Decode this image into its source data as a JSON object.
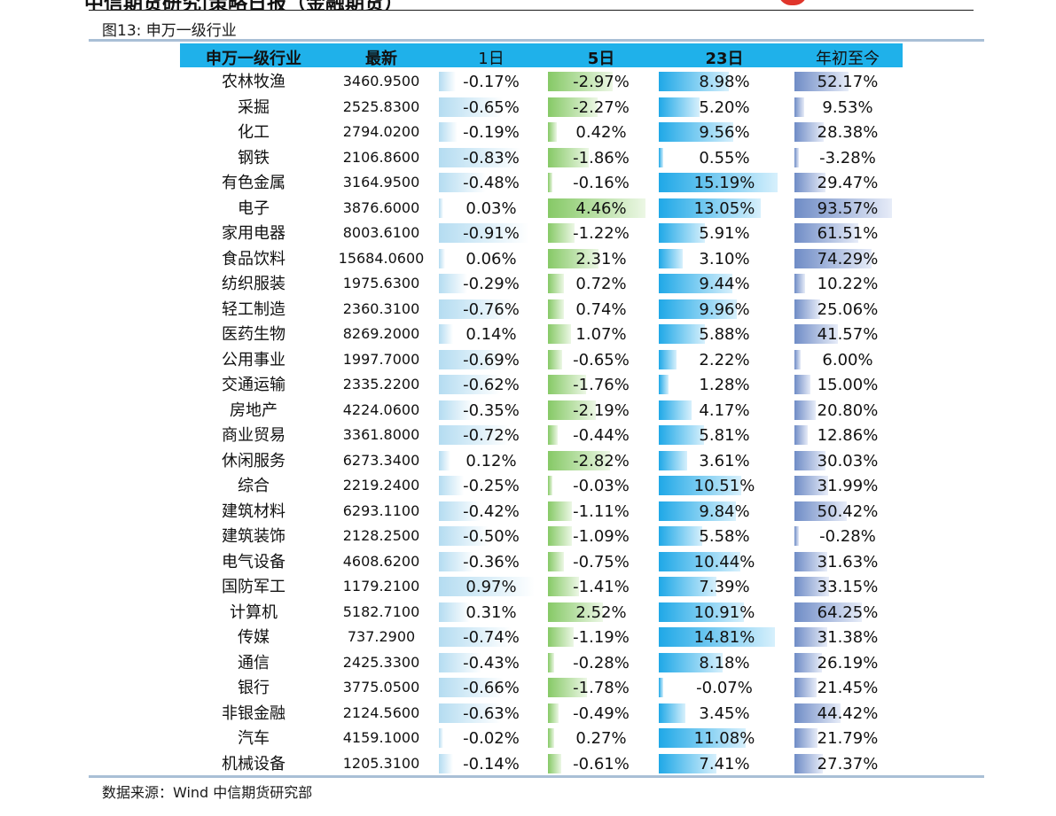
{
  "page_header": {
    "title_cut": "中信期货研究|策略日报（金融期货）"
  },
  "figure": {
    "caption": "图13: 申万一级行业"
  },
  "table": {
    "columns": [
      "申万一级行业",
      "最新",
      "1日",
      "5日",
      "23日",
      "年初至今"
    ],
    "max_abs": {
      "d1": 0.97,
      "d5": 4.46,
      "d23": 15.19,
      "ytd": 93.57
    },
    "rows": [
      {
        "industry": "农林牧渔",
        "latest": "3460.9500",
        "d1": "-0.17%",
        "d5": "-2.97%",
        "d23": "8.98%",
        "ytd": "52.17%"
      },
      {
        "industry": "采掘",
        "latest": "2525.8300",
        "d1": "-0.65%",
        "d5": "-2.27%",
        "d23": "5.20%",
        "ytd": "9.53%"
      },
      {
        "industry": "化工",
        "latest": "2794.0200",
        "d1": "-0.19%",
        "d5": "0.42%",
        "d23": "9.56%",
        "ytd": "28.38%"
      },
      {
        "industry": "钢铁",
        "latest": "2106.8600",
        "d1": "-0.83%",
        "d5": "-1.86%",
        "d23": "0.55%",
        "ytd": "-3.28%"
      },
      {
        "industry": "有色金属",
        "latest": "3164.9500",
        "d1": "-0.48%",
        "d5": "-0.16%",
        "d23": "15.19%",
        "ytd": "29.47%"
      },
      {
        "industry": "电子",
        "latest": "3876.6000",
        "d1": "0.03%",
        "d5": "4.46%",
        "d23": "13.05%",
        "ytd": "93.57%"
      },
      {
        "industry": "家用电器",
        "latest": "8003.6100",
        "d1": "-0.91%",
        "d5": "-1.22%",
        "d23": "5.91%",
        "ytd": "61.51%"
      },
      {
        "industry": "食品饮料",
        "latest": "15684.0600",
        "d1": "0.06%",
        "d5": "2.31%",
        "d23": "3.10%",
        "ytd": "74.29%"
      },
      {
        "industry": "纺织服装",
        "latest": "1975.6300",
        "d1": "-0.29%",
        "d5": "0.72%",
        "d23": "9.44%",
        "ytd": "10.22%"
      },
      {
        "industry": "轻工制造",
        "latest": "2360.3100",
        "d1": "-0.76%",
        "d5": "0.74%",
        "d23": "9.96%",
        "ytd": "25.06%"
      },
      {
        "industry": "医药生物",
        "latest": "8269.2000",
        "d1": "0.14%",
        "d5": "1.07%",
        "d23": "5.88%",
        "ytd": "41.57%"
      },
      {
        "industry": "公用事业",
        "latest": "1997.7000",
        "d1": "-0.69%",
        "d5": "-0.65%",
        "d23": "2.22%",
        "ytd": "6.00%"
      },
      {
        "industry": "交通运输",
        "latest": "2335.2200",
        "d1": "-0.62%",
        "d5": "-1.76%",
        "d23": "1.28%",
        "ytd": "15.00%"
      },
      {
        "industry": "房地产",
        "latest": "4224.0600",
        "d1": "-0.35%",
        "d5": "-2.19%",
        "d23": "4.17%",
        "ytd": "20.80%"
      },
      {
        "industry": "商业贸易",
        "latest": "3361.8000",
        "d1": "-0.72%",
        "d5": "-0.44%",
        "d23": "5.81%",
        "ytd": "12.86%"
      },
      {
        "industry": "休闲服务",
        "latest": "6273.3400",
        "d1": "0.12%",
        "d5": "-2.82%",
        "d23": "3.61%",
        "ytd": "30.03%"
      },
      {
        "industry": "综合",
        "latest": "2219.2400",
        "d1": "-0.25%",
        "d5": "-0.03%",
        "d23": "10.51%",
        "ytd": "31.99%"
      },
      {
        "industry": "建筑材料",
        "latest": "6293.1100",
        "d1": "-0.42%",
        "d5": "-1.11%",
        "d23": "9.84%",
        "ytd": "50.42%"
      },
      {
        "industry": "建筑装饰",
        "latest": "2128.2500",
        "d1": "-0.50%",
        "d5": "-1.09%",
        "d23": "5.58%",
        "ytd": "-0.28%"
      },
      {
        "industry": "电气设备",
        "latest": "4608.6200",
        "d1": "-0.36%",
        "d5": "-0.75%",
        "d23": "10.44%",
        "ytd": "31.63%"
      },
      {
        "industry": "国防军工",
        "latest": "1179.2100",
        "d1": "0.97%",
        "d5": "-1.41%",
        "d23": "7.39%",
        "ytd": "33.15%"
      },
      {
        "industry": "计算机",
        "latest": "5182.7100",
        "d1": "0.31%",
        "d5": "2.52%",
        "d23": "10.91%",
        "ytd": "64.25%"
      },
      {
        "industry": "传媒",
        "latest": "737.2900",
        "d1": "-0.74%",
        "d5": "-1.19%",
        "d23": "14.81%",
        "ytd": "31.38%"
      },
      {
        "industry": "通信",
        "latest": "2425.3300",
        "d1": "-0.43%",
        "d5": "-0.28%",
        "d23": "8.18%",
        "ytd": "26.19%"
      },
      {
        "industry": "银行",
        "latest": "3775.0500",
        "d1": "-0.66%",
        "d5": "-1.78%",
        "d23": "-0.07%",
        "ytd": "21.45%"
      },
      {
        "industry": "非银金融",
        "latest": "2124.5600",
        "d1": "-0.63%",
        "d5": "-0.49%",
        "d23": "3.45%",
        "ytd": "44.42%"
      },
      {
        "industry": "汽车",
        "latest": "4159.1000",
        "d1": "-0.02%",
        "d5": "0.27%",
        "d23": "11.08%",
        "ytd": "21.79%"
      },
      {
        "industry": "机械设备",
        "latest": "1205.3100",
        "d1": "-0.14%",
        "d5": "-0.61%",
        "d23": "7.41%",
        "ytd": "27.37%"
      }
    ]
  },
  "source": "数据来源：Wind   中信期货研究部",
  "colors": {
    "header_band": "#1fb1ea",
    "bar_d1": "#b4dcf1",
    "bar_d5": "#86c966",
    "bar_d23": "#1fa8e7",
    "bar_ytd": "#6f8cc6",
    "rule": "#a9bfd6"
  }
}
